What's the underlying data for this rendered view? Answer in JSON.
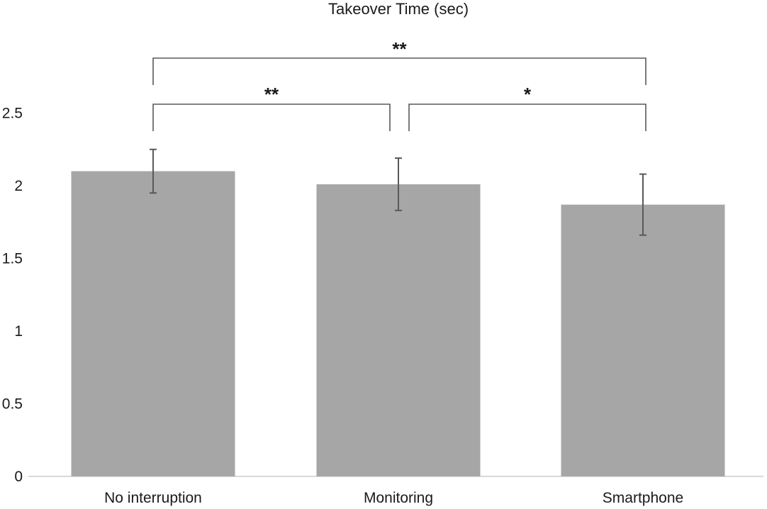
{
  "chart_data": {
    "type": "bar",
    "title": "Takeover Time (sec)",
    "xlabel": "",
    "ylabel": "",
    "categories": [
      "No interruption",
      "Monitoring",
      "Smartphone"
    ],
    "values": [
      2.1,
      2.01,
      1.87
    ],
    "error_bars": [
      {
        "low": 1.95,
        "high": 2.25
      },
      {
        "low": 1.83,
        "high": 2.19
      },
      {
        "low": 1.66,
        "high": 2.08
      }
    ],
    "ylim": [
      0,
      2.5
    ],
    "yticks": [
      "0",
      "0.5",
      "1",
      "1.5",
      "2",
      "2.5"
    ],
    "grid": false,
    "legend": "none",
    "bar_color": "#a6a6a6",
    "axis_color": "#d9d9d9",
    "significance": [
      {
        "from": 0,
        "to": 1,
        "label": "**"
      },
      {
        "from": 1,
        "to": 2,
        "label": "*"
      },
      {
        "from": 0,
        "to": 2,
        "label": "**"
      }
    ]
  }
}
